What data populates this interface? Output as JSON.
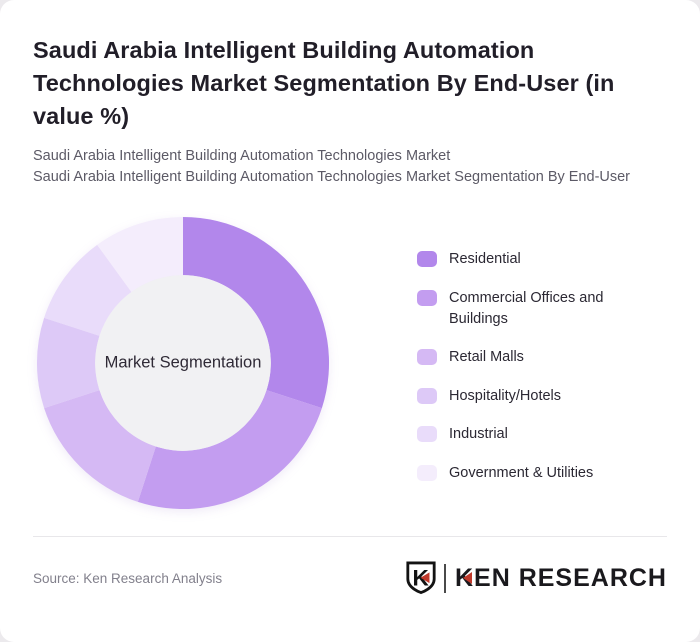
{
  "header": {
    "title": "Saudi Arabia Intelligent Building Automation Technologies Market Segmentation By End-User (in value %)",
    "subtitle_line1": "Saudi Arabia Intelligent Building Automation Technologies Market",
    "subtitle_line2": "Saudi Arabia Intelligent Building Automation Technologies Market Segmentation By End-User"
  },
  "chart_data": {
    "type": "pie",
    "donut": true,
    "title": "Saudi Arabia Intelligent Building Automation Technologies Market Segmentation By End-User (in value %)",
    "center_label": "Market Segmentation",
    "unit": "value %",
    "start_angle_deg": 0,
    "direction": "clockwise",
    "legend_position": "right",
    "inner_circle_color": "#f1f1f3",
    "segments": [
      {
        "label": "Residential",
        "value": 30,
        "color": "#b287eb"
      },
      {
        "label": "Commercial Offices and Buildings",
        "value": 25,
        "color": "#c39df0"
      },
      {
        "label": "Retail Malls",
        "value": 15,
        "color": "#d5b9f4"
      },
      {
        "label": "Hospitality/Hotels",
        "value": 10,
        "color": "#ddc9f7"
      },
      {
        "label": "Industrial",
        "value": 10,
        "color": "#e9dcfa"
      },
      {
        "label": "Government & Utilities",
        "value": 10,
        "color": "#f4edfc"
      }
    ]
  },
  "footer": {
    "source": "Source: Ken Research Analysis",
    "brand": {
      "shield_letter": "K",
      "wordmark_k": "K",
      "wordmark_rest": "EN RESEARCH"
    }
  }
}
